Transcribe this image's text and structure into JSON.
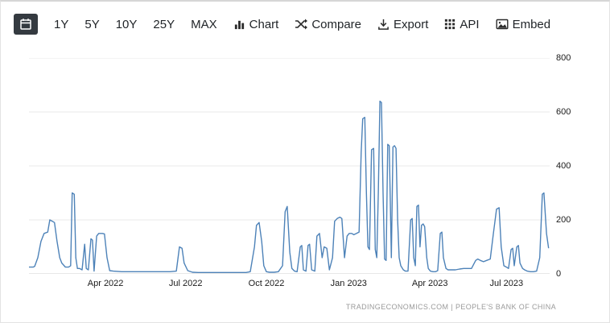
{
  "toolbar": {
    "ranges": [
      "1Y",
      "5Y",
      "10Y",
      "25Y",
      "MAX"
    ],
    "actions": [
      {
        "label": "Chart",
        "icon": "bar-chart-icon"
      },
      {
        "label": "Compare",
        "icon": "shuffle-icon"
      },
      {
        "label": "Export",
        "icon": "download-icon"
      },
      {
        "label": "API",
        "icon": "grid-icon"
      },
      {
        "label": "Embed",
        "icon": "image-icon"
      }
    ]
  },
  "watermark": {
    "text": "TRADINGECONOMICS.COM | PEOPLE'S BANK OF CHINA"
  },
  "colors": {
    "line": "#4d82b8",
    "grid": "#e9e9e9",
    "axis_line": "#cfcfcf",
    "toolbar_text": "#212529",
    "calendar_bg": "#343a40",
    "watermark": "#9a9a9a"
  },
  "chart_data": {
    "type": "line",
    "title": "",
    "source": "PEOPLE'S BANK OF CHINA",
    "ylim": [
      0,
      800
    ],
    "y_ticks": [
      0,
      200,
      400,
      600,
      800
    ],
    "grid": "horizontal",
    "legend": "none",
    "x_ticks": [
      {
        "label": "Apr 2022",
        "f": 0.147
      },
      {
        "label": "Jul 2022",
        "f": 0.301
      },
      {
        "label": "Oct 2022",
        "f": 0.456
      },
      {
        "label": "Jan 2023",
        "f": 0.614
      },
      {
        "label": "Apr 2023",
        "f": 0.77
      },
      {
        "label": "Jul 2023",
        "f": 0.917
      }
    ],
    "points": [
      [
        0.0,
        25
      ],
      [
        0.008,
        25
      ],
      [
        0.011,
        28
      ],
      [
        0.017,
        60
      ],
      [
        0.023,
        120
      ],
      [
        0.029,
        150
      ],
      [
        0.036,
        155
      ],
      [
        0.04,
        200
      ],
      [
        0.045,
        195
      ],
      [
        0.049,
        190
      ],
      [
        0.054,
        120
      ],
      [
        0.059,
        60
      ],
      [
        0.063,
        40
      ],
      [
        0.07,
        25
      ],
      [
        0.076,
        25
      ],
      [
        0.08,
        30
      ],
      [
        0.083,
        300
      ],
      [
        0.087,
        295
      ],
      [
        0.09,
        60
      ],
      [
        0.093,
        20
      ],
      [
        0.097,
        20
      ],
      [
        0.102,
        15
      ],
      [
        0.107,
        110
      ],
      [
        0.11,
        20
      ],
      [
        0.114,
        15
      ],
      [
        0.119,
        130
      ],
      [
        0.122,
        125
      ],
      [
        0.125,
        10
      ],
      [
        0.13,
        140
      ],
      [
        0.134,
        150
      ],
      [
        0.141,
        150
      ],
      [
        0.145,
        148
      ],
      [
        0.15,
        60
      ],
      [
        0.155,
        12
      ],
      [
        0.162,
        10
      ],
      [
        0.178,
        8
      ],
      [
        0.193,
        8
      ],
      [
        0.209,
        8
      ],
      [
        0.224,
        8
      ],
      [
        0.24,
        8
      ],
      [
        0.255,
        8
      ],
      [
        0.271,
        8
      ],
      [
        0.283,
        10
      ],
      [
        0.289,
        100
      ],
      [
        0.294,
        95
      ],
      [
        0.298,
        40
      ],
      [
        0.305,
        12
      ],
      [
        0.314,
        6
      ],
      [
        0.325,
        5
      ],
      [
        0.34,
        5
      ],
      [
        0.356,
        5
      ],
      [
        0.371,
        5
      ],
      [
        0.386,
        5
      ],
      [
        0.402,
        5
      ],
      [
        0.417,
        5
      ],
      [
        0.425,
        8
      ],
      [
        0.433,
        100
      ],
      [
        0.437,
        180
      ],
      [
        0.442,
        190
      ],
      [
        0.447,
        120
      ],
      [
        0.451,
        30
      ],
      [
        0.456,
        8
      ],
      [
        0.462,
        6
      ],
      [
        0.471,
        6
      ],
      [
        0.479,
        8
      ],
      [
        0.487,
        30
      ],
      [
        0.492,
        230
      ],
      [
        0.496,
        250
      ],
      [
        0.501,
        80
      ],
      [
        0.505,
        20
      ],
      [
        0.51,
        10
      ],
      [
        0.515,
        8
      ],
      [
        0.521,
        100
      ],
      [
        0.524,
        105
      ],
      [
        0.527,
        15
      ],
      [
        0.532,
        10
      ],
      [
        0.536,
        105
      ],
      [
        0.539,
        110
      ],
      [
        0.543,
        15
      ],
      [
        0.549,
        10
      ],
      [
        0.553,
        140
      ],
      [
        0.558,
        150
      ],
      [
        0.563,
        60
      ],
      [
        0.567,
        100
      ],
      [
        0.572,
        95
      ],
      [
        0.577,
        15
      ],
      [
        0.583,
        60
      ],
      [
        0.587,
        195
      ],
      [
        0.592,
        205
      ],
      [
        0.597,
        210
      ],
      [
        0.601,
        205
      ],
      [
        0.606,
        60
      ],
      [
        0.611,
        140
      ],
      [
        0.615,
        150
      ],
      [
        0.62,
        150
      ],
      [
        0.624,
        145
      ],
      [
        0.629,
        150
      ],
      [
        0.634,
        155
      ],
      [
        0.638,
        450
      ],
      [
        0.641,
        575
      ],
      [
        0.645,
        580
      ],
      [
        0.648,
        300
      ],
      [
        0.651,
        100
      ],
      [
        0.654,
        90
      ],
      [
        0.658,
        460
      ],
      [
        0.662,
        465
      ],
      [
        0.665,
        90
      ],
      [
        0.668,
        60
      ],
      [
        0.671,
        300
      ],
      [
        0.674,
        640
      ],
      [
        0.677,
        635
      ],
      [
        0.68,
        300
      ],
      [
        0.683,
        55
      ],
      [
        0.686,
        50
      ],
      [
        0.689,
        480
      ],
      [
        0.692,
        475
      ],
      [
        0.696,
        60
      ],
      [
        0.699,
        470
      ],
      [
        0.702,
        475
      ],
      [
        0.705,
        465
      ],
      [
        0.708,
        200
      ],
      [
        0.711,
        60
      ],
      [
        0.714,
        30
      ],
      [
        0.719,
        15
      ],
      [
        0.723,
        10
      ],
      [
        0.728,
        10
      ],
      [
        0.733,
        200
      ],
      [
        0.736,
        205
      ],
      [
        0.739,
        60
      ],
      [
        0.742,
        30
      ],
      [
        0.745,
        250
      ],
      [
        0.748,
        255
      ],
      [
        0.751,
        100
      ],
      [
        0.754,
        180
      ],
      [
        0.757,
        185
      ],
      [
        0.76,
        175
      ],
      [
        0.764,
        60
      ],
      [
        0.767,
        20
      ],
      [
        0.771,
        10
      ],
      [
        0.776,
        8
      ],
      [
        0.781,
        8
      ],
      [
        0.785,
        12
      ],
      [
        0.79,
        150
      ],
      [
        0.793,
        155
      ],
      [
        0.796,
        60
      ],
      [
        0.801,
        20
      ],
      [
        0.805,
        15
      ],
      [
        0.811,
        15
      ],
      [
        0.819,
        15
      ],
      [
        0.827,
        18
      ],
      [
        0.835,
        20
      ],
      [
        0.842,
        20
      ],
      [
        0.85,
        20
      ],
      [
        0.858,
        50
      ],
      [
        0.862,
        55
      ],
      [
        0.867,
        50
      ],
      [
        0.873,
        45
      ],
      [
        0.879,
        50
      ],
      [
        0.886,
        55
      ],
      [
        0.892,
        150
      ],
      [
        0.898,
        240
      ],
      [
        0.903,
        245
      ],
      [
        0.907,
        100
      ],
      [
        0.912,
        30
      ],
      [
        0.917,
        25
      ],
      [
        0.921,
        20
      ],
      [
        0.926,
        90
      ],
      [
        0.929,
        95
      ],
      [
        0.932,
        30
      ],
      [
        0.937,
        100
      ],
      [
        0.94,
        105
      ],
      [
        0.943,
        40
      ],
      [
        0.948,
        20
      ],
      [
        0.952,
        15
      ],
      [
        0.957,
        10
      ],
      [
        0.963,
        8
      ],
      [
        0.969,
        8
      ],
      [
        0.975,
        10
      ],
      [
        0.981,
        60
      ],
      [
        0.986,
        295
      ],
      [
        0.989,
        300
      ],
      [
        0.994,
        150
      ],
      [
        0.998,
        95
      ]
    ]
  }
}
